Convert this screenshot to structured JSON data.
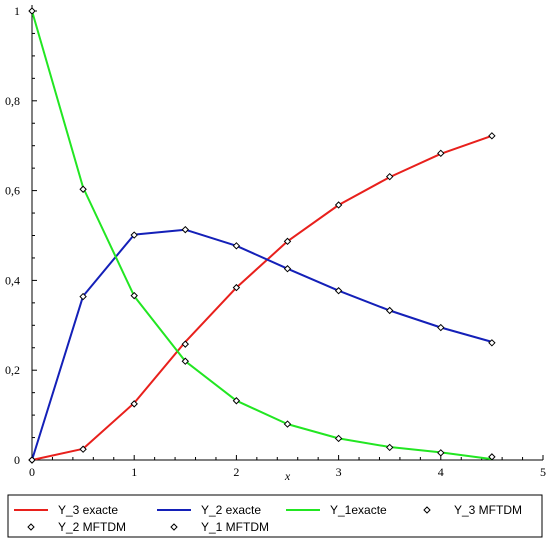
{
  "chart_data": {
    "type": "line",
    "xlabel": "x",
    "ylabel": "",
    "xlim": [
      0,
      5
    ],
    "ylim": [
      0,
      1
    ],
    "x_ticks": [
      "0",
      "1",
      "2",
      "3",
      "4",
      "5"
    ],
    "y_ticks": [
      "0",
      "0,2",
      "0,4",
      "0,6",
      "0,8",
      "1"
    ],
    "grid": false,
    "legend_position": "bottom",
    "x": [
      0,
      0.5,
      1.0,
      1.5,
      2.0,
      2.5,
      3.0,
      3.5,
      4.0,
      4.5
    ],
    "series": [
      {
        "name": "Y_3 exacte",
        "style": "line",
        "color": "#e8201c",
        "values": [
          0,
          0.025,
          0.127,
          0.263,
          0.384,
          0.487,
          0.568,
          0.63,
          0.682,
          0.722
        ]
      },
      {
        "name": "Y_2 exacte",
        "style": "line",
        "color": "#1420b8",
        "values": [
          0,
          0.365,
          0.502,
          0.513,
          0.477,
          0.426,
          0.377,
          0.333,
          0.295,
          0.263
        ]
      },
      {
        "name": "Y_1exacte",
        "style": "line",
        "color": "#22e622",
        "values": [
          1,
          0.607,
          0.365,
          0.22,
          0.132,
          0.08,
          0.048,
          0.029,
          0.017,
          0.002
        ]
      },
      {
        "name": "Y_3 MFTDM",
        "style": "marker",
        "color": "#000000",
        "values": [
          0,
          0.024,
          0.125,
          0.258,
          0.384,
          0.487,
          0.568,
          0.631,
          0.683,
          0.722
        ]
      },
      {
        "name": "Y_2 MFTDM",
        "style": "marker",
        "color": "#000000",
        "values": [
          0,
          0.364,
          0.501,
          0.513,
          0.477,
          0.426,
          0.377,
          0.333,
          0.295,
          0.261
        ]
      },
      {
        "name": "Y_1 MFTDM",
        "style": "marker",
        "color": "#000000",
        "values": [
          1,
          0.603,
          0.366,
          0.22,
          0.132,
          0.08,
          0.048,
          0.028,
          0.016,
          0.007
        ]
      }
    ]
  }
}
